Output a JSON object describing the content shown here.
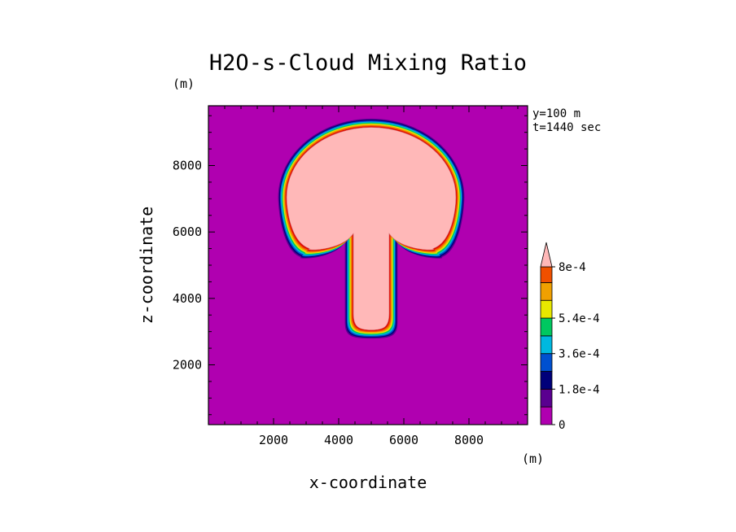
{
  "chart_data": {
    "type": "heatmap",
    "title": "H2O-s-Cloud Mixing Ratio",
    "xlabel": "x-coordinate",
    "ylabel": "z-coordinate",
    "x_unit": "(m)",
    "y_unit": "(m)",
    "xlim": [
      0,
      9800
    ],
    "ylim": [
      200,
      9800
    ],
    "x_ticks": [
      2000,
      4000,
      6000,
      8000
    ],
    "y_ticks": [
      2000,
      4000,
      6000,
      8000
    ],
    "annotations": [
      "y=100 m",
      "t=1440 sec"
    ],
    "colorbar": {
      "levels": [
        0,
        9e-05,
        0.00018,
        0.00027,
        0.00036,
        0.00045,
        0.00054,
        0.00063,
        0.00072,
        0.0008
      ],
      "level_labels": [
        "0",
        "1.8e-4",
        "3.6e-4",
        "5.4e-4",
        "8e-4"
      ],
      "label_values": [
        0,
        0.00018,
        0.00036,
        0.00054,
        0.0008
      ],
      "colors": [
        "#b000b0",
        "#5a0090",
        "#00007a",
        "#0050d0",
        "#00b8e0",
        "#00c860",
        "#e8e800",
        "#f0a000",
        "#f05000",
        "#e00000"
      ],
      "overflow_color": "#ffb8b8"
    },
    "field": {
      "background_value": 0,
      "core_value": 0.00085,
      "cap_center": [
        5000,
        7050
      ],
      "cap_radii": [
        2600,
        2100
      ],
      "cap_bottom_z": 5500,
      "stem_x_range": [
        4450,
        5550
      ],
      "stem_bottom_z": 3050
    }
  }
}
